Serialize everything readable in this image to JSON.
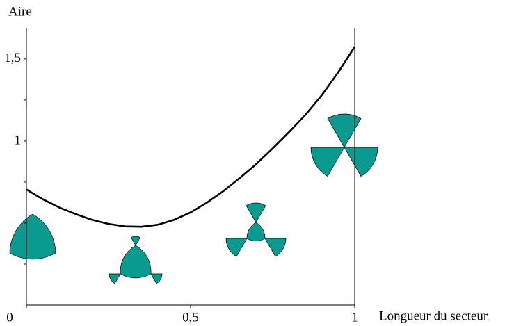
{
  "chart_data": {
    "type": "line",
    "ylabel": "Aire",
    "xlabel": "Longueur du secteur",
    "x": [
      0,
      0.05,
      0.1,
      0.15,
      0.2,
      0.25,
      0.3,
      0.35,
      0.4,
      0.45,
      0.5,
      0.55,
      0.6,
      0.65,
      0.7,
      0.75,
      0.8,
      0.85,
      0.9,
      0.95,
      1
    ],
    "series": [
      {
        "color": "#000000",
        "values": [
          0.705,
          0.645,
          0.595,
          0.555,
          0.52,
          0.495,
          0.48,
          0.478,
          0.49,
          0.52,
          0.565,
          0.625,
          0.695,
          0.775,
          0.86,
          0.955,
          1.055,
          1.16,
          1.28,
          1.42,
          1.575
        ]
      }
    ],
    "xlim": [
      0,
      1
    ],
    "ylim": [
      0,
      1.69
    ],
    "xticks": [
      0,
      {
        "value": 0.5,
        "label": "0,5"
      },
      1
    ],
    "yticks": [
      1,
      {
        "value": 1.5,
        "label": "1,5"
      }
    ],
    "yminorticks": [
      0.25,
      0.5,
      0.75,
      1.25
    ]
  }
}
